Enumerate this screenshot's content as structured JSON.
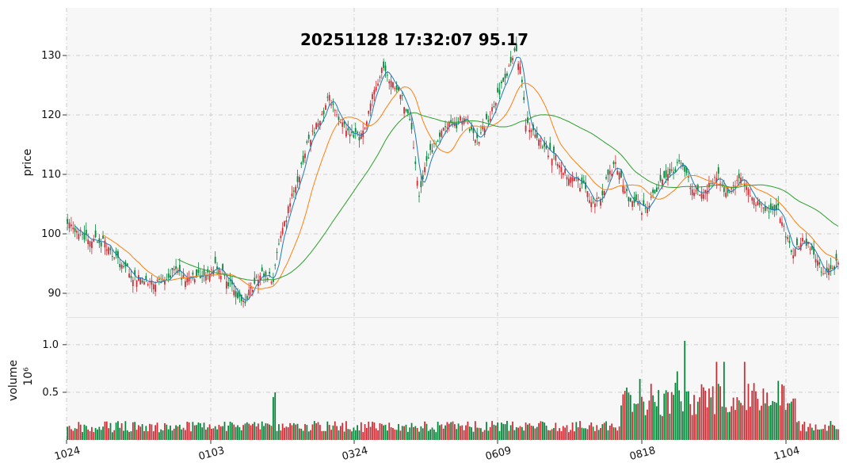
{
  "chart_data": [
    {
      "type": "candlestick",
      "title": "20251128 17:32:07   95.17",
      "ylabel": "price",
      "yticks": [
        90,
        100,
        110,
        120,
        130
      ],
      "ylim": [
        86,
        138
      ],
      "xticks": [
        "1024",
        "0103",
        "0324",
        "0609",
        "0818",
        "1104"
      ],
      "grid": true,
      "colors": {
        "up": "#d02a33",
        "down": "#06843a",
        "ma_short": "#1f77b4",
        "ma_mid": "#ff7f0e",
        "ma_long": "#2ca02c"
      },
      "close_path": [
        [
          0,
          101.5
        ],
        [
          5,
          100.5
        ],
        [
          12,
          99
        ],
        [
          20,
          98.5
        ],
        [
          28,
          95
        ],
        [
          35,
          93
        ],
        [
          43,
          92
        ],
        [
          50,
          92.3
        ],
        [
          58,
          93.5
        ],
        [
          65,
          92
        ],
        [
          70,
          93
        ],
        [
          80,
          94.5
        ],
        [
          88,
          91
        ],
        [
          93,
          88
        ],
        [
          97,
          90
        ],
        [
          100,
          92
        ],
        [
          104,
          93
        ],
        [
          110,
          92.5
        ],
        [
          114,
          100
        ],
        [
          118,
          104
        ],
        [
          124,
          110
        ],
        [
          128,
          115
        ],
        [
          136,
          120
        ],
        [
          140,
          123
        ],
        [
          144,
          120
        ],
        [
          150,
          117
        ],
        [
          156,
          116
        ],
        [
          160,
          119
        ],
        [
          164,
          124
        ],
        [
          168,
          128
        ],
        [
          172,
          126
        ],
        [
          176,
          124
        ],
        [
          180,
          122
        ],
        [
          184,
          118
        ],
        [
          186,
          112
        ],
        [
          188,
          107
        ],
        [
          192,
          112
        ],
        [
          196,
          115
        ],
        [
          200,
          117
        ],
        [
          204,
          119
        ],
        [
          208,
          118
        ],
        [
          212,
          120
        ],
        [
          216,
          117
        ],
        [
          220,
          116
        ],
        [
          224,
          119
        ],
        [
          228,
          121
        ],
        [
          232,
          125
        ],
        [
          236,
          128
        ],
        [
          239,
          131
        ],
        [
          242,
          128
        ],
        [
          245,
          119
        ],
        [
          248,
          117
        ],
        [
          252,
          116
        ],
        [
          256,
          114
        ],
        [
          260,
          113
        ],
        [
          264,
          111
        ],
        [
          268,
          110
        ],
        [
          272,
          109
        ],
        [
          276,
          108
        ],
        [
          279,
          106
        ],
        [
          282,
          105
        ],
        [
          286,
          107
        ],
        [
          290,
          110
        ],
        [
          293,
          112
        ],
        [
          296,
          109
        ],
        [
          300,
          106
        ],
        [
          304,
          105
        ],
        [
          308,
          104
        ],
        [
          312,
          106
        ],
        [
          316,
          108
        ],
        [
          320,
          109
        ],
        [
          324,
          111
        ],
        [
          328,
          112
        ],
        [
          332,
          109
        ],
        [
          336,
          107
        ],
        [
          340,
          106
        ],
        [
          344,
          109
        ],
        [
          348,
          110
        ],
        [
          352,
          107
        ],
        [
          356,
          108
        ],
        [
          360,
          109
        ],
        [
          364,
          107
        ],
        [
          368,
          105
        ],
        [
          372,
          104.5
        ],
        [
          376,
          103.5
        ],
        [
          380,
          104
        ],
        [
          384,
          100
        ],
        [
          388,
          97
        ],
        [
          392,
          99
        ],
        [
          396,
          98
        ],
        [
          400,
          96
        ],
        [
          404,
          93.5
        ],
        [
          409,
          94.5
        ],
        [
          412,
          95.17
        ]
      ]
    },
    {
      "type": "bar",
      "ylabel": "volume",
      "yunit": "10⁶",
      "yticks": [
        "0.5",
        "1.0"
      ],
      "ylim": [
        0,
        1.29
      ],
      "spikes": [
        [
          110,
          0.45
        ],
        [
          111,
          0.5
        ],
        [
          299,
          0.55
        ],
        [
          306,
          0.64
        ],
        [
          326,
          0.72
        ],
        [
          330,
          1.04
        ],
        [
          347,
          0.82
        ],
        [
          351,
          0.82
        ],
        [
          362,
          0.82
        ],
        [
          380,
          0.62
        ]
      ]
    }
  ]
}
